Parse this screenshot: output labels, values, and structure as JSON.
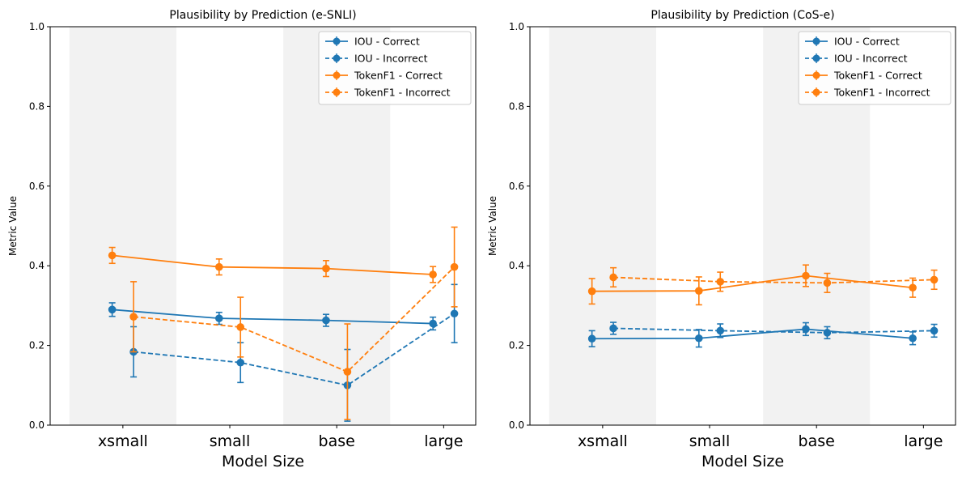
{
  "colors": {
    "iou": "#1f77b4",
    "tokenf1": "#ff7f0e",
    "band": "#d9d9d9"
  },
  "chart_data": [
    {
      "type": "line",
      "title": "Plausibility by Prediction (e-SNLI)",
      "xlabel": "Model Size",
      "ylabel": "Metric Value",
      "categories": [
        "xsmall",
        "small",
        "base",
        "large"
      ],
      "ylim": [
        0,
        1
      ],
      "yticks": [
        "0.0",
        "0.2",
        "0.4",
        "0.6",
        "0.8",
        "1.0"
      ],
      "shaded_bands": [
        "xsmall",
        "base"
      ],
      "legend_position": "top-right",
      "grid": false,
      "series": [
        {
          "name": "IOU - Correct",
          "metric": "iou",
          "style": "solid",
          "offset": -0.1,
          "values": [
            0.29,
            0.268,
            0.263,
            0.255
          ],
          "errors": [
            0.017,
            0.015,
            0.015,
            0.016
          ]
        },
        {
          "name": "IOU - Incorrect",
          "metric": "iou",
          "style": "dashed",
          "offset": 0.1,
          "values": [
            0.184,
            0.157,
            0.1,
            0.28
          ],
          "errors": [
            0.063,
            0.05,
            0.09,
            0.073
          ]
        },
        {
          "name": "TokenF1 - Correct",
          "metric": "tokenf1",
          "style": "solid",
          "offset": -0.1,
          "values": [
            0.426,
            0.397,
            0.393,
            0.378
          ],
          "errors": [
            0.02,
            0.02,
            0.02,
            0.02
          ]
        },
        {
          "name": "TokenF1 - Incorrect",
          "metric": "tokenf1",
          "style": "dashed",
          "offset": 0.1,
          "values": [
            0.272,
            0.246,
            0.134,
            0.397
          ],
          "errors": [
            0.088,
            0.075,
            0.12,
            0.1
          ]
        }
      ]
    },
    {
      "type": "line",
      "title": "Plausibility by Prediction (CoS-e)",
      "xlabel": "Model Size",
      "ylabel": "Metric Value",
      "categories": [
        "xsmall",
        "small",
        "base",
        "large"
      ],
      "ylim": [
        0,
        1
      ],
      "yticks": [
        "0.0",
        "0.2",
        "0.4",
        "0.6",
        "0.8",
        "1.0"
      ],
      "shaded_bands": [
        "xsmall",
        "base"
      ],
      "legend_position": "top-right",
      "grid": false,
      "series": [
        {
          "name": "IOU - Correct",
          "metric": "iou",
          "style": "solid",
          "offset": -0.1,
          "values": [
            0.217,
            0.218,
            0.241,
            0.218
          ],
          "errors": [
            0.02,
            0.022,
            0.016,
            0.016
          ]
        },
        {
          "name": "IOU - Incorrect",
          "metric": "iou",
          "style": "dashed",
          "offset": 0.1,
          "values": [
            0.243,
            0.237,
            0.232,
            0.237
          ],
          "errors": [
            0.015,
            0.017,
            0.015,
            0.016
          ]
        },
        {
          "name": "TokenF1 - Correct",
          "metric": "tokenf1",
          "style": "solid",
          "offset": -0.1,
          "values": [
            0.336,
            0.337,
            0.375,
            0.345
          ],
          "errors": [
            0.032,
            0.035,
            0.027,
            0.024
          ]
        },
        {
          "name": "TokenF1 - Incorrect",
          "metric": "tokenf1",
          "style": "dashed",
          "offset": 0.1,
          "values": [
            0.371,
            0.36,
            0.357,
            0.365
          ],
          "errors": [
            0.024,
            0.024,
            0.024,
            0.024
          ]
        }
      ]
    }
  ]
}
